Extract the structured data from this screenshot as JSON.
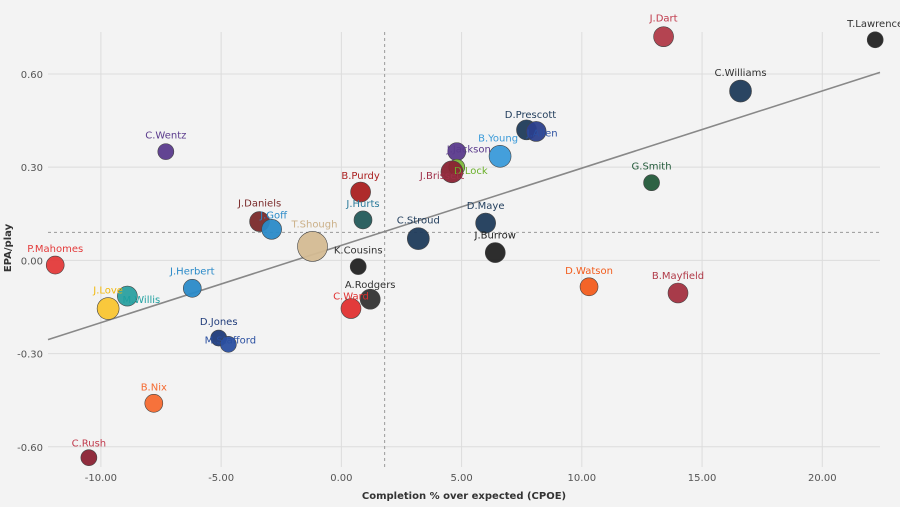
{
  "chart_data": {
    "type": "scatter",
    "xlabel": "Completion % over expected (CPOE)",
    "ylabel": "EPA/play",
    "xlim": [
      -12.2,
      22.4
    ],
    "ylim": [
      -0.665,
      0.735
    ],
    "x_ticks": [
      -10,
      -5,
      0,
      5,
      10,
      15,
      20
    ],
    "x_tick_labels": [
      "-10.00",
      "-5.00",
      "0.00",
      "5.00",
      "10.00",
      "15.00",
      "20.00"
    ],
    "y_ticks": [
      -0.6,
      -0.3,
      0,
      0.3,
      0.6
    ],
    "y_tick_labels": [
      "-0.60",
      "-0.30",
      "0.00",
      "0.30",
      "0.60"
    ],
    "grid": true,
    "reference_lines": {
      "x": 1.8,
      "y": 0.09
    },
    "trend_line": {
      "x": [
        -12.2,
        22.4
      ],
      "y": [
        -0.255,
        0.605
      ]
    },
    "points": [
      {
        "name": "T.Lawrence",
        "x": 22.2,
        "y": 0.71,
        "size": 8,
        "color": "#222222",
        "label_color": "#333333"
      },
      {
        "name": "J.Dart",
        "x": 13.4,
        "y": 0.72,
        "size": 10,
        "color": "#b03a48",
        "label_color": "#c0394b"
      },
      {
        "name": "C.Williams",
        "x": 16.6,
        "y": 0.545,
        "size": 11,
        "color": "#1f3b5a",
        "label_color": "#333333"
      },
      {
        "name": "D.Prescott",
        "x": 7.7,
        "y": 0.42,
        "size": 10,
        "color": "#1f3b5a",
        "label_color": "#1f3b5a"
      },
      {
        "name": "J.Allen",
        "x": 8.1,
        "y": 0.415,
        "size": 10,
        "color": "#2b3f8c",
        "label_color": "#2b4fa0"
      },
      {
        "name": "B.Young",
        "x": 6.6,
        "y": 0.335,
        "size": 11,
        "color": "#3a9ad9",
        "label_color": "#3a9ad9"
      },
      {
        "name": "J.Jackson",
        "x": 4.8,
        "y": 0.35,
        "size": 9,
        "color": "#5a3a8c",
        "label_color": "#5a3a8c"
      },
      {
        "name": "D.Lock",
        "x": 4.8,
        "y": 0.3,
        "size": 8,
        "color": "#7dbb3a",
        "label_color": "#6ab02a"
      },
      {
        "name": "J.Brissett",
        "x": 4.6,
        "y": 0.285,
        "size": 11,
        "color": "#8a2233",
        "label_color": "#a0304a"
      },
      {
        "name": "G.Smith",
        "x": 12.9,
        "y": 0.25,
        "size": 8,
        "color": "#235a3a",
        "label_color": "#235a3a"
      },
      {
        "name": "C.Wentz",
        "x": -7.3,
        "y": 0.35,
        "size": 8,
        "color": "#5a3a8c",
        "label_color": "#5a3a8c"
      },
      {
        "name": "B.Purdy",
        "x": 0.8,
        "y": 0.22,
        "size": 10,
        "color": "#aa2020",
        "label_color": "#aa2020"
      },
      {
        "name": "J.Hurts",
        "x": 0.9,
        "y": 0.13,
        "size": 9,
        "color": "#235a5a",
        "label_color": "#2a7a9a"
      },
      {
        "name": "J.Daniels",
        "x": -3.4,
        "y": 0.125,
        "size": 10,
        "color": "#7a2a2a",
        "label_color": "#7a2a2a"
      },
      {
        "name": "J.Goff",
        "x": -2.9,
        "y": 0.1,
        "size": 10,
        "color": "#2a8ac8",
        "label_color": "#2a8ac8"
      },
      {
        "name": "T.Shough",
        "x": -1.2,
        "y": 0.045,
        "size": 15,
        "color": "#d4bb92",
        "label_color": "#cbb088"
      },
      {
        "name": "C.Stroud",
        "x": 3.2,
        "y": 0.07,
        "size": 11,
        "color": "#1f3b5a",
        "label_color": "#1f3b5a"
      },
      {
        "name": "D.Maye",
        "x": 6.0,
        "y": 0.12,
        "size": 10,
        "color": "#1f3b5a",
        "label_color": "#1f3b5a"
      },
      {
        "name": "J.Burrow",
        "x": 6.4,
        "y": 0.025,
        "size": 10,
        "color": "#222222",
        "label_color": "#222222"
      },
      {
        "name": "K.Cousins",
        "x": 0.7,
        "y": -0.02,
        "size": 8,
        "color": "#222222",
        "label_color": "#333333"
      },
      {
        "name": "A.Rodgers",
        "x": 1.2,
        "y": -0.125,
        "size": 10,
        "color": "#333333",
        "label_color": "#333333"
      },
      {
        "name": "C.Ward",
        "x": 0.4,
        "y": -0.155,
        "size": 10,
        "color": "#e03030",
        "label_color": "#e03030"
      },
      {
        "name": "P.Mahomes",
        "x": -11.9,
        "y": -0.015,
        "size": 9,
        "color": "#e33a3a",
        "label_color": "#e33a3a"
      },
      {
        "name": "D.Watson",
        "x": 10.3,
        "y": -0.085,
        "size": 9,
        "color": "#f25c1c",
        "label_color": "#f25c1c"
      },
      {
        "name": "B.Mayfield",
        "x": 14.0,
        "y": -0.105,
        "size": 10,
        "color": "#a33040",
        "label_color": "#b03a48"
      },
      {
        "name": "J.Herbert",
        "x": -6.2,
        "y": -0.09,
        "size": 9,
        "color": "#2a8ac8",
        "label_color": "#2a8ac8"
      },
      {
        "name": "J.Love",
        "x": -9.7,
        "y": -0.155,
        "size": 11,
        "color": "#f9c531",
        "label_color": "#f1b80c"
      },
      {
        "name": "M.Willis",
        "x": -8.9,
        "y": -0.115,
        "size": 10,
        "color": "#2aa0a0",
        "label_color": "#1ea0a0"
      },
      {
        "name": "D.Jones",
        "x": -5.1,
        "y": -0.25,
        "size": 8,
        "color": "#1f3b7a",
        "label_color": "#1f3b7a"
      },
      {
        "name": "M.Stafford",
        "x": -4.7,
        "y": -0.27,
        "size": 8,
        "color": "#2a4fa0",
        "label_color": "#2a4fa0"
      },
      {
        "name": "B.Nix",
        "x": -7.8,
        "y": -0.46,
        "size": 9,
        "color": "#f56a30",
        "label_color": "#f56a30"
      },
      {
        "name": "C.Rush",
        "x": -10.5,
        "y": -0.635,
        "size": 8,
        "color": "#8a2233",
        "label_color": "#c0394b"
      }
    ]
  }
}
